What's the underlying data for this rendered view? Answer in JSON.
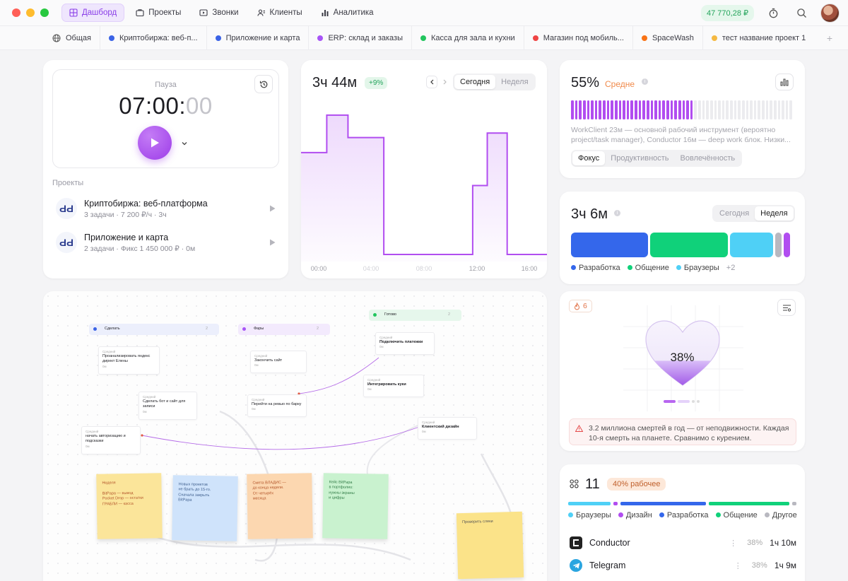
{
  "titlebar": {
    "nav": [
      {
        "label": "Дашборд",
        "icon": "dashboard-icon",
        "active": true
      },
      {
        "label": "Проекты",
        "icon": "briefcase-icon"
      },
      {
        "label": "Звонки",
        "icon": "video-icon"
      },
      {
        "label": "Клиенты",
        "icon": "users-icon"
      },
      {
        "label": "Аналитика",
        "icon": "bar-chart-icon"
      }
    ],
    "balance": "47 770,28 ₽"
  },
  "project_tabs": [
    {
      "label": "Общая",
      "icon": "globe-icon"
    },
    {
      "label": "Криптобиржа: веб-п...",
      "color": "#3b63e6"
    },
    {
      "label": "Приложение и карта",
      "color": "#3b63e6"
    },
    {
      "label": "ERP: склад и заказы",
      "color": "#a855f7"
    },
    {
      "label": "Касса для зала и кухни",
      "color": "#22c55e"
    },
    {
      "label": "Магазин под мобиль...",
      "color": "#ef4444"
    },
    {
      "label": "SpaceWash",
      "color": "#f97316"
    },
    {
      "label": "тест название проект 1",
      "color": "#f5b942"
    }
  ],
  "timer": {
    "status": "Пауза",
    "time_main": "07:00:",
    "time_dim": "00",
    "projects_label": "Проекты",
    "projects": [
      {
        "name": "Криптобиржа: веб-платформа",
        "meta": "3 задачи · 7 200 ₽/ч · 3ч"
      },
      {
        "name": "Приложение и карта",
        "meta": "2 задачи · Фикс 1 450 000 ₽ · 0м"
      }
    ]
  },
  "activity": {
    "total": "3ч 44м",
    "delta": "+9%",
    "tab_today": "Сегодня",
    "tab_week": "Неделя",
    "chart_data": {
      "type": "area",
      "x_ticks": [
        "00:00",
        "04:00",
        "08:00",
        "12:00",
        "16:00"
      ],
      "x": [
        0,
        1.3,
        2.9,
        5.6,
        9.5,
        12.3,
        13.4,
        14.9,
        17.9
      ],
      "y": [
        0.68,
        0.93,
        0.78,
        0.0,
        0.0,
        0.46,
        0.81,
        0.0,
        0.0
      ],
      "color": "#b14df0"
    }
  },
  "focus": {
    "percent": "55%",
    "level": "Средне",
    "level_color": "#f08a4b",
    "bar_fill": 0.55,
    "description": "WorkClient 23м — основной рабочий инструмент (вероятно project/task manager), Conductor 16м — deep work блок. Низки...",
    "tabs": [
      "Фокус",
      "Продуктивность",
      "Вовлечённость"
    ]
  },
  "time_split": {
    "total": "3ч 6м",
    "tab_today": "Сегодня",
    "tab_week": "Неделя",
    "segments": [
      {
        "name": "Разработка",
        "color": "#3467eb",
        "value": 0.36
      },
      {
        "name": "Общение",
        "color": "#10d17a",
        "value": 0.36
      },
      {
        "name": "Браузеры",
        "color": "#4fd0f6",
        "value": 0.2
      },
      {
        "name": "Прочее",
        "color": "#b8b8c0",
        "value": 0.03
      },
      {
        "name": "Дизайн",
        "color": "#b14df0",
        "value": 0.03
      }
    ],
    "legend": [
      {
        "name": "Разработка",
        "color": "#3467eb"
      },
      {
        "name": "Общение",
        "color": "#10d17a"
      },
      {
        "name": "Браузеры",
        "color": "#4fd0f6"
      }
    ],
    "more": "+2"
  },
  "health": {
    "streak": "6",
    "percent": "38%",
    "fill": 0.38,
    "warning": "3.2 миллиона смертей в год — от неподвижности. Каждая 10-я смерть на планете. Сравнимо с курением."
  },
  "apps": {
    "count": "11",
    "badge": "40% рабочее",
    "legend": [
      {
        "name": "Браузеры",
        "color": "#4fd0f6"
      },
      {
        "name": "Дизайн",
        "color": "#b14df0"
      },
      {
        "name": "Разработка",
        "color": "#3467eb"
      },
      {
        "name": "Общение",
        "color": "#10d17a"
      },
      {
        "name": "Другое",
        "color": "#b8b8c0"
      }
    ],
    "list": [
      {
        "name": "Conductor",
        "percent": "38%",
        "time": "1ч 10м"
      },
      {
        "name": "Telegram",
        "percent": "38%",
        "time": "1ч 9м"
      }
    ]
  },
  "board": {
    "columns": [
      {
        "title": "Сделать",
        "count": "2"
      },
      {
        "title": "Фары",
        "count": "2"
      },
      {
        "title": "Готово",
        "count": "2"
      }
    ],
    "cards": [
      {
        "tag": "Средний",
        "text": "Проанализировать яндекс директ Елены",
        "meta": "0м"
      },
      {
        "tag": "Средний",
        "text": "Закончить сайт",
        "meta": "0м"
      },
      {
        "tag": "Средний",
        "text": "Подключить платежки",
        "meta": "0м"
      },
      {
        "tag": "Средний",
        "text": "Интегрировать куки",
        "meta": "0м"
      },
      {
        "tag": "Средний",
        "text": "Сделать бот и сайт для записи",
        "meta": "0м"
      },
      {
        "tag": "Средний",
        "text": "Перейти на ревью по барку",
        "meta": "0м"
      },
      {
        "tag": "Средний",
        "text": "начать авторизацию и подсказки",
        "meta": "0м"
      },
      {
        "tag": "Средний",
        "text": "Клиентский дизайн",
        "meta": "0м"
      }
    ],
    "stickies": [
      {
        "text": "Неделя\n\nBitPapa — вывод\nPocket Drop — остатки\nГРАБЛИ — касса",
        "color": "#fbe59a",
        "text_color": "#b4582d"
      },
      {
        "text": "Новых проектов\nне брать до 15-го.\nСначала закрыть\nBitPapa",
        "color": "#cfe3fb",
        "text_color": "#3f5f8e"
      },
      {
        "text": "Смета ВЛАДИС —\nдо конца недели.\nОт четырёх\nмесяца",
        "color": "#fcd7b0",
        "text_color": "#b4582d"
      },
      {
        "text": "Кейс BitPapa\nв портфолио:\nнужны экраны\nи цифры",
        "color": "#c9f2cf",
        "text_color": "#2f7a45"
      },
      {
        "text": "Проверить слеки",
        "color": "#fbe389",
        "text_color": "#555"
      }
    ]
  }
}
